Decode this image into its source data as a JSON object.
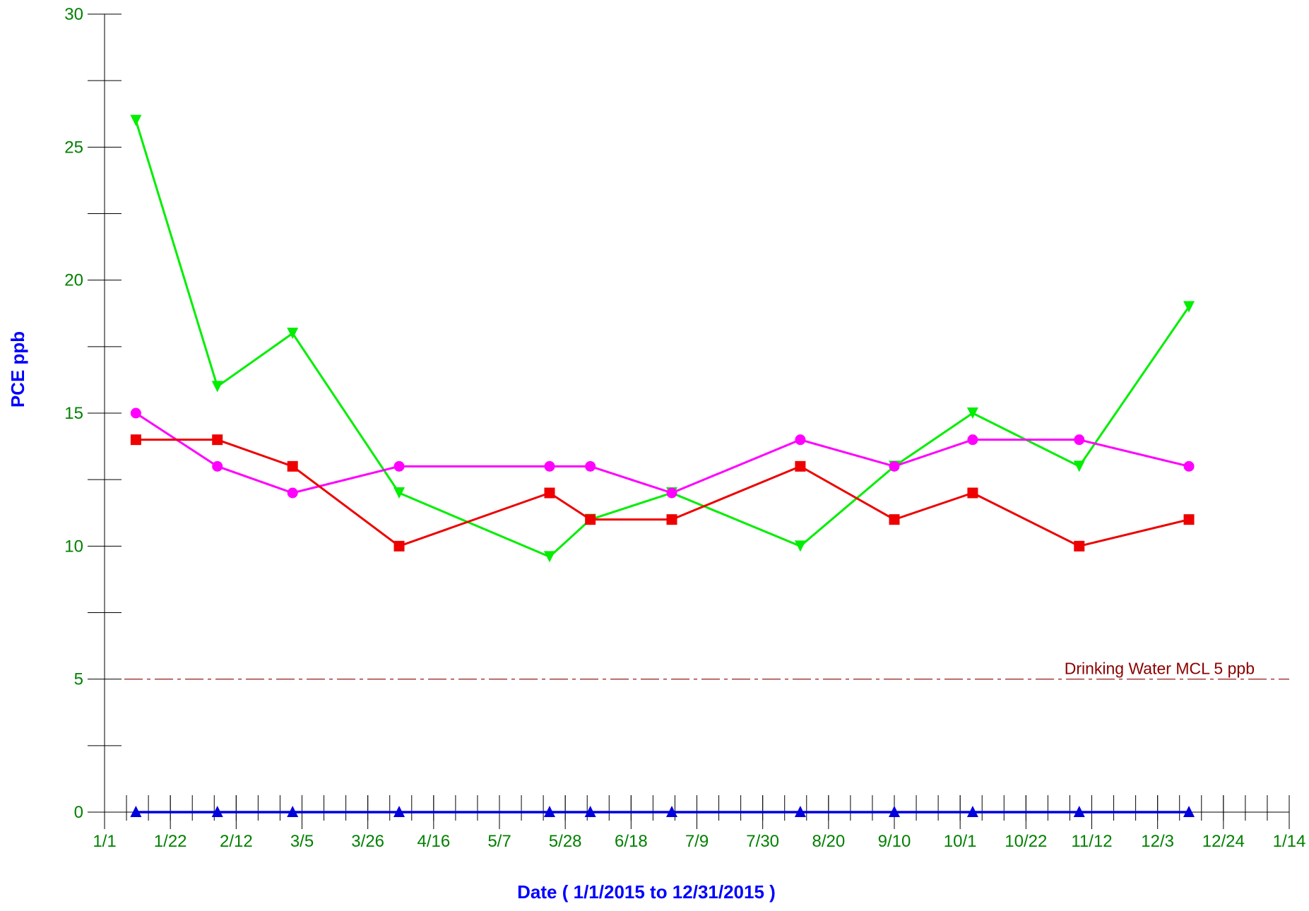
{
  "colors": {
    "axis_label_text": "#008000",
    "axis_title_text": "#0000ff",
    "axis_line": "#000000",
    "reference_line": "#8b0000"
  },
  "chart_data": {
    "type": "line",
    "title": "",
    "xlabel": "Date  ( 1/1/2015  to  12/31/2015 )",
    "ylabel": "PCE ppb",
    "ylim": [
      0,
      30
    ],
    "xlim": [
      "2015-01-01",
      "2016-01-14"
    ],
    "grid": false,
    "legend": "none",
    "y_ticks": [
      0,
      5,
      10,
      15,
      20,
      25,
      30
    ],
    "y_minor_step": 2.5,
    "x_tick_labels": [
      "1/1",
      "1/22",
      "2/12",
      "3/5",
      "3/26",
      "4/16",
      "5/7",
      "5/28",
      "6/18",
      "7/9",
      "7/30",
      "8/20",
      "9/10",
      "10/1",
      "10/22",
      "11/12",
      "12/3",
      "12/24",
      "1/14"
    ],
    "x_tick_dates": [
      "2015-01-01",
      "2015-01-22",
      "2015-02-12",
      "2015-03-05",
      "2015-03-26",
      "2015-04-16",
      "2015-05-07",
      "2015-05-28",
      "2015-06-18",
      "2015-07-09",
      "2015-07-30",
      "2015-08-20",
      "2015-09-10",
      "2015-10-01",
      "2015-10-22",
      "2015-11-12",
      "2015-12-03",
      "2015-12-24",
      "2016-01-14"
    ],
    "x_minor_step_days": 7,
    "reference_lines": [
      {
        "label": "Drinking Water MCL 5 ppb",
        "y": 5,
        "color": "#8b0000",
        "style": "dash-dot"
      }
    ],
    "series": [
      {
        "color": "#00ee00",
        "marker": "triangle-down",
        "x": [
          "2015-01-11",
          "2015-02-06",
          "2015-03-02",
          "2015-04-05",
          "2015-05-23",
          "2015-06-05",
          "2015-07-01",
          "2015-08-11",
          "2015-09-10",
          "2015-10-05",
          "2015-11-08",
          "2015-12-13"
        ],
        "y": [
          26,
          16,
          18,
          12,
          9.6,
          11,
          12,
          10,
          13,
          15,
          13,
          19
        ]
      },
      {
        "color": "#ff00ff",
        "marker": "circle",
        "x": [
          "2015-01-11",
          "2015-02-06",
          "2015-03-02",
          "2015-04-05",
          "2015-05-23",
          "2015-06-05",
          "2015-07-01",
          "2015-08-11",
          "2015-09-10",
          "2015-10-05",
          "2015-11-08",
          "2015-12-13"
        ],
        "y": [
          15,
          13,
          12,
          13,
          13,
          13,
          12,
          14,
          13,
          14,
          14,
          13
        ]
      },
      {
        "color": "#ee0000",
        "marker": "square",
        "x": [
          "2015-01-11",
          "2015-02-06",
          "2015-03-02",
          "2015-04-05",
          "2015-05-23",
          "2015-06-05",
          "2015-07-01",
          "2015-08-11",
          "2015-09-10",
          "2015-10-05",
          "2015-11-08",
          "2015-12-13"
        ],
        "y": [
          14,
          14,
          13,
          10,
          12,
          11,
          11,
          13,
          11,
          12,
          10,
          11
        ]
      },
      {
        "color": "#0000dd",
        "marker": "triangle-up",
        "x": [
          "2015-01-11",
          "2015-02-06",
          "2015-03-02",
          "2015-04-05",
          "2015-05-23",
          "2015-06-05",
          "2015-07-01",
          "2015-08-11",
          "2015-09-10",
          "2015-10-05",
          "2015-11-08",
          "2015-12-13"
        ],
        "y": [
          0,
          0,
          0,
          0,
          0,
          0,
          0,
          0,
          0,
          0,
          0,
          0
        ]
      }
    ]
  }
}
